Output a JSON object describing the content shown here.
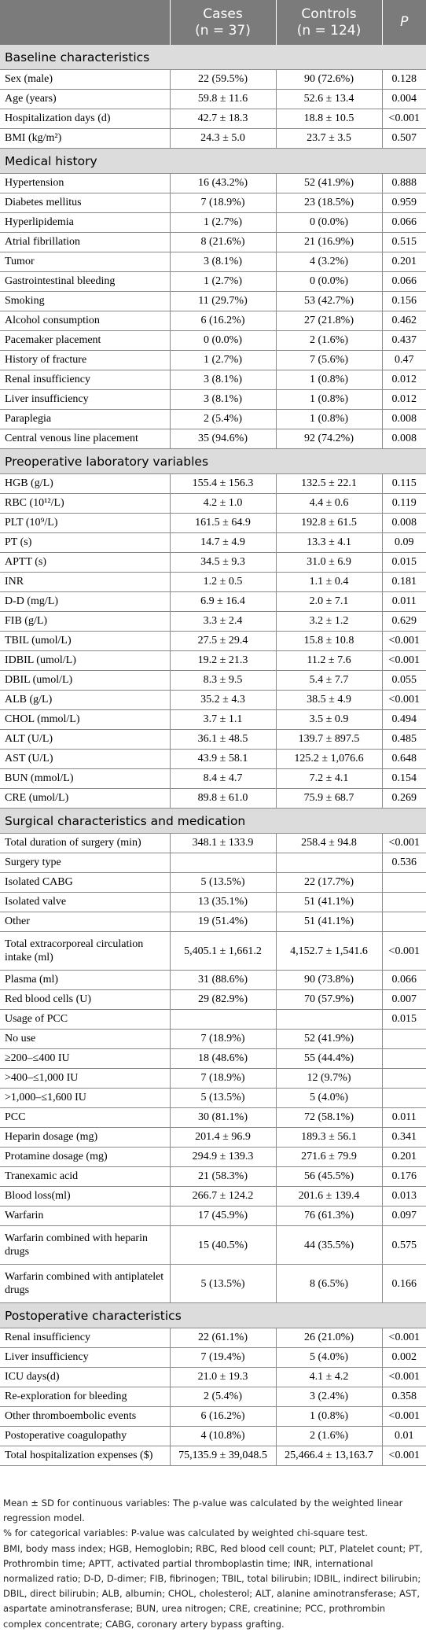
{
  "header": {
    "col1": "",
    "cases": "Cases",
    "cases_n": "(n = 37)",
    "controls": "Controls",
    "controls_n": "(n = 124)",
    "p": "P"
  },
  "sections": [
    {
      "title": "Baseline characteristics",
      "rows": [
        [
          "Sex (male)",
          "22 (59.5%)",
          "90 (72.6%)",
          "0.128"
        ],
        [
          "Age (years)",
          "59.8 ± 11.6",
          "52.6 ± 13.4",
          "0.004"
        ],
        [
          "Hospitalization days (d)",
          "42.7 ± 18.3",
          "18.8 ± 10.5",
          "<0.001"
        ],
        [
          "BMI (kg/m²)",
          "24.3 ± 5.0",
          "23.7 ± 3.5",
          "0.507"
        ]
      ]
    },
    {
      "title": "Medical history",
      "rows": [
        [
          "Hypertension",
          "16 (43.2%)",
          "52 (41.9%)",
          "0.888"
        ],
        [
          "Diabetes mellitus",
          "7 (18.9%)",
          "23 (18.5%)",
          "0.959"
        ],
        [
          "Hyperlipidemia",
          "1 (2.7%)",
          "0 (0.0%)",
          "0.066"
        ],
        [
          "Atrial fibrillation",
          "8 (21.6%)",
          "21 (16.9%)",
          "0.515"
        ],
        [
          "Tumor",
          "3 (8.1%)",
          "4 (3.2%)",
          "0.201"
        ],
        [
          "Gastrointestinal bleeding",
          "1 (2.7%)",
          "0 (0.0%)",
          "0.066"
        ],
        [
          "Smoking",
          "11 (29.7%)",
          "53 (42.7%)",
          "0.156"
        ],
        [
          "Alcohol consumption",
          "6 (16.2%)",
          "27 (21.8%)",
          "0.462"
        ],
        [
          "Pacemaker placement",
          "0 (0.0%)",
          "2 (1.6%)",
          "0.437"
        ],
        [
          "History of fracture",
          "1 (2.7%)",
          "7 (5.6%)",
          "0.47"
        ],
        [
          "Renal insufficiency",
          "3 (8.1%)",
          "1 (0.8%)",
          "0.012"
        ],
        [
          "Liver insufficiency",
          "3 (8.1%)",
          "1 (0.8%)",
          "0.012"
        ],
        [
          "Paraplegia",
          "2 (5.4%)",
          "1 (0.8%)",
          "0.008"
        ],
        [
          "Central venous line placement",
          "35 (94.6%)",
          "92 (74.2%)",
          "0.008"
        ]
      ]
    },
    {
      "title": "Preoperative laboratory variables",
      "rows": [
        [
          "HGB (g/L)",
          "155.4 ± 156.3",
          "132.5 ± 22.1",
          "0.115"
        ],
        [
          "RBC (10¹²/L)",
          "4.2 ± 1.0",
          "4.4 ± 0.6",
          "0.119"
        ],
        [
          "PLT (10⁹/L)",
          "161.5 ± 64.9",
          "192.8 ± 61.5",
          "0.008"
        ],
        [
          "PT (s)",
          "14.7 ± 4.9",
          "13.3 ± 4.1",
          "0.09"
        ],
        [
          "APTT (s)",
          "34.5 ± 9.3",
          "31.0 ± 6.9",
          "0.015"
        ],
        [
          "INR",
          "1.2 ± 0.5",
          "1.1 ± 0.4",
          "0.181"
        ],
        [
          "D-D (mg/L)",
          "6.9 ± 16.4",
          "2.0 ± 7.1",
          "0.011"
        ],
        [
          "FIB (g/L)",
          "3.3 ± 2.4",
          "3.2 ± 1.2",
          "0.629"
        ],
        [
          "TBIL (umol/L)",
          "27.5 ± 29.4",
          "15.8 ± 10.8",
          "<0.001"
        ],
        [
          "IDBIL (umol/L)",
          "19.2 ± 21.3",
          "11.2 ± 7.6",
          "<0.001"
        ],
        [
          "DBIL (umol/L)",
          "8.3 ± 9.5",
          "5.4 ± 7.7",
          "0.055"
        ],
        [
          "ALB (g/L)",
          "35.2 ± 4.3",
          "38.5 ± 4.9",
          "<0.001"
        ],
        [
          "CHOL (mmol/L)",
          "3.7 ± 1.1",
          "3.5 ± 0.9",
          "0.494"
        ],
        [
          "ALT (U/L)",
          "36.1 ± 48.5",
          "139.7 ± 897.5",
          "0.485"
        ],
        [
          "AST (U/L)",
          "43.9 ± 58.1",
          "125.2 ± 1,076.6",
          "0.648"
        ],
        [
          "BUN (mmol/L)",
          "8.4 ± 4.7",
          "7.2 ± 4.1",
          "0.154"
        ],
        [
          "CRE (umol/L)",
          "89.8 ± 61.0",
          "75.9 ± 68.7",
          "0.269"
        ]
      ]
    },
    {
      "title": "Surgical characteristics and medication",
      "rows": [
        [
          "Total duration of surgery (min)",
          "348.1 ± 133.9",
          "258.4 ± 94.8",
          "<0.001"
        ],
        [
          "Surgery type",
          "",
          "",
          "0.536"
        ],
        [
          "Isolated CABG",
          "5 (13.5%)",
          "22 (17.7%)",
          ""
        ],
        [
          "Isolated valve",
          "13 (35.1%)",
          "51 (41.1%)",
          ""
        ],
        [
          "Other",
          "19 (51.4%)",
          "51 (41.1%)",
          ""
        ],
        [
          "Total extracorporeal circulation intake (ml)",
          "5,405.1 ± 1,661.2",
          "4,152.7 ± 1,541.6",
          "<0.001"
        ],
        [
          "Plasma (ml)",
          "31 (88.6%)",
          "90 (73.8%)",
          "0.066"
        ],
        [
          "Red blood cells (U)",
          "29 (82.9%)",
          "70 (57.9%)",
          "0.007"
        ],
        [
          "Usage of PCC",
          "",
          "",
          "0.015"
        ],
        [
          "No use",
          "7 (18.9%)",
          "52 (41.9%)",
          ""
        ],
        [
          "≥200–≤400 IU",
          "18 (48.6%)",
          "55 (44.4%)",
          ""
        ],
        [
          ">400–≤1,000 IU",
          "7 (18.9%)",
          "12 (9.7%)",
          ""
        ],
        [
          ">1,000–≤1,600 IU",
          "5 (13.5%)",
          "5 (4.0%)",
          ""
        ],
        [
          "PCC",
          "30 (81.1%)",
          "72 (58.1%)",
          "0.011"
        ],
        [
          "Heparin dosage (mg)",
          "201.4 ± 96.9",
          "189.3 ± 56.1",
          "0.341"
        ],
        [
          "Protamine dosage (mg)",
          "294.9 ± 139.3",
          "271.6 ± 79.9",
          "0.201"
        ],
        [
          "Tranexamic acid",
          "21 (58.3%)",
          "56 (45.5%)",
          "0.176"
        ],
        [
          "Blood loss(ml)",
          "266.7 ± 124.2",
          "201.6 ± 139.4",
          "0.013"
        ],
        [
          "Warfarin",
          "17 (45.9%)",
          "76 (61.3%)",
          "0.097"
        ],
        [
          "Warfarin combined with heparin drugs",
          "15 (40.5%)",
          "44 (35.5%)",
          "0.575"
        ],
        [
          "Warfarin combined with antiplatelet drugs",
          "5 (13.5%)",
          "8 (6.5%)",
          "0.166"
        ]
      ]
    },
    {
      "title": "Postoperative characteristics",
      "rows": [
        [
          "Renal insufficiency",
          "22 (61.1%)",
          "26 (21.0%)",
          "<0.001"
        ],
        [
          "Liver insufficiency",
          "7 (19.4%)",
          "5 (4.0%)",
          "0.002"
        ],
        [
          "ICU days(d)",
          "21.0 ± 19.3",
          "4.1 ± 4.2",
          "<0.001"
        ],
        [
          "Re-exploration for bleeding",
          "2 (5.4%)",
          "3 (2.4%)",
          "0.358"
        ],
        [
          "Other thromboembolic events",
          "6 (16.2%)",
          "1 (0.8%)",
          "<0.001"
        ],
        [
          "Postoperative coagulopathy",
          "4 (10.8%)",
          "2 (1.6%)",
          "0.01"
        ],
        [
          "Total hospitalization expenses ($)",
          "75,135.9 ± 39,048.5",
          "25,466.4 ± 13,163.7",
          "<0.001"
        ]
      ]
    }
  ],
  "notes": [
    "Mean ± SD for continuous variables: The p-value was calculated by the weighted linear regression model.",
    "% for categorical variables: P-value was calculated by weighted chi-square test.",
    "BMI, body mass index; HGB, Hemoglobin; RBC, Red blood cell count; PLT, Platelet count; PT, Prothrombin time; APTT, activated partial thromboplastin time; INR, international normalized ratio; D-D, D-dimer; FIB, fibrinogen; TBIL, total bilirubin; IDBIL, indirect bilirubin; DBIL, direct bilirubin; ALB, albumin; CHOL, cholesterol; ALT, alanine aminotransferase; AST, aspartate aminotransferase; BUN, urea nitrogen; CRE, creatinine; PCC, prothrombin complex concentrate; CABG, coronary artery bypass grafting."
  ]
}
